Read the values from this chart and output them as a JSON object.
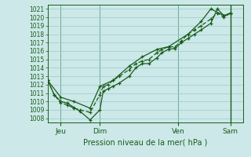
{
  "title": "Pression niveau de la mer( hPa )",
  "bg_color": "#cce8e8",
  "grid_color": "#99cccc",
  "line_color": "#1a5c1a",
  "ylim": [
    1007.5,
    1021.5
  ],
  "yticks": [
    1008,
    1009,
    1010,
    1011,
    1012,
    1013,
    1014,
    1015,
    1016,
    1017,
    1018,
    1019,
    1020,
    1021
  ],
  "xlim": [
    0,
    120
  ],
  "day_ticks": [
    8,
    32,
    80,
    112
  ],
  "day_labels": [
    "Jeu",
    "Dim",
    "Ven",
    "Sam"
  ],
  "vline_positions": [
    8,
    32,
    80,
    112
  ],
  "series1_x": [
    0,
    4,
    8,
    12,
    16,
    20,
    26,
    32,
    34,
    37,
    40,
    44,
    50,
    54,
    58,
    62,
    67,
    70,
    74,
    78,
    82,
    86,
    90,
    94,
    100,
    104,
    108,
    112
  ],
  "series1_y": [
    1012.5,
    1010.8,
    1010.0,
    1009.8,
    1009.3,
    1008.8,
    1007.8,
    1009.0,
    1011.2,
    1011.5,
    1011.8,
    1012.2,
    1013.0,
    1014.0,
    1014.5,
    1014.5,
    1015.2,
    1015.8,
    1016.2,
    1016.3,
    1017.0,
    1017.5,
    1018.0,
    1018.5,
    1019.3,
    1021.0,
    1020.2,
    1020.5
  ],
  "series2_x": [
    0,
    4,
    8,
    12,
    16,
    20,
    26,
    32,
    34,
    37,
    40,
    44,
    50,
    54,
    58,
    62,
    67,
    70,
    74,
    78,
    82,
    86,
    90,
    94,
    100,
    104,
    108,
    112
  ],
  "series2_y": [
    1012.5,
    1010.8,
    1009.8,
    1009.6,
    1009.2,
    1009.0,
    1008.7,
    1010.8,
    1011.8,
    1012.0,
    1012.5,
    1013.0,
    1013.8,
    1014.5,
    1014.8,
    1015.0,
    1015.8,
    1016.2,
    1016.5,
    1016.5,
    1017.2,
    1018.0,
    1018.5,
    1019.0,
    1019.8,
    1020.5,
    1020.0,
    1020.5
  ],
  "series3_x": [
    0,
    8,
    16,
    26,
    32,
    40,
    50,
    58,
    67,
    74,
    86,
    94,
    100,
    108,
    112
  ],
  "series3_y": [
    1012.5,
    1010.5,
    1010.0,
    1009.2,
    1011.8,
    1012.5,
    1014.2,
    1015.3,
    1016.2,
    1016.5,
    1018.0,
    1019.5,
    1021.0,
    1020.2,
    1020.5
  ],
  "right_vline_x": 112
}
